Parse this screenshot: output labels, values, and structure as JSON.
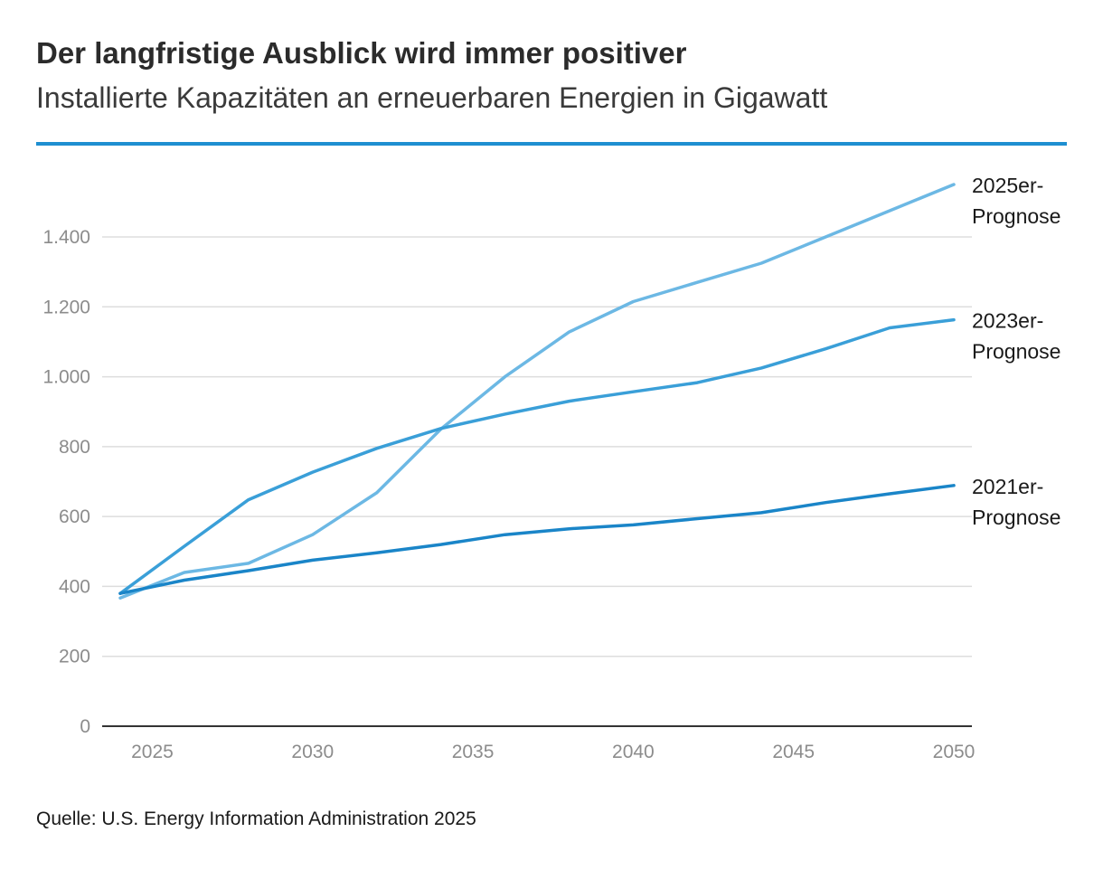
{
  "header": {
    "title": "Der langfristige Ausblick wird immer positiver",
    "subtitle": "Installierte Kapazitäten an erneuerbaren Energien in Gigawatt"
  },
  "footer": {
    "source": "Quelle: U.S. Energy Information Administration 2025"
  },
  "colors": {
    "accent_rule": "#1e8fd1",
    "grid": "#dddddd",
    "axis": "#333333"
  },
  "chart_data": {
    "type": "line",
    "title": "Der langfristige Ausblick wird immer positiver",
    "subtitle": "Installierte Kapazitäten an erneuerbaren Energien in Gigawatt",
    "xlabel": "",
    "ylabel": "",
    "xlim": [
      2024,
      2050
    ],
    "ylim": [
      0,
      1600
    ],
    "grid": true,
    "x_ticks": [
      2025,
      2030,
      2035,
      2040,
      2045,
      2050
    ],
    "x_tick_labels": [
      "2025",
      "2030",
      "2035",
      "2040",
      "2045",
      "2050"
    ],
    "y_ticks": [
      0,
      200,
      400,
      600,
      800,
      1000,
      1200,
      1400
    ],
    "y_tick_labels": [
      "0",
      "200",
      "400",
      "600",
      "800",
      "1.000",
      "1.200",
      "1.400"
    ],
    "series": [
      {
        "name": "2025er-Prognose",
        "label_lines": [
          "2025er-",
          "Prognose"
        ],
        "color": "#6cb8e4",
        "x": [
          2024,
          2026,
          2028,
          2030,
          2032,
          2034,
          2036,
          2038,
          2040,
          2042,
          2044,
          2046,
          2048,
          2050
        ],
        "values": [
          367,
          440,
          466,
          548,
          668,
          850,
          1000,
          1128,
          1215,
          1270,
          1325,
          1400,
          1475,
          1550
        ]
      },
      {
        "name": "2023er-Prognose",
        "label_lines": [
          "2023er-",
          "Prognose"
        ],
        "color": "#3a9fd8",
        "x": [
          2024,
          2026,
          2028,
          2030,
          2032,
          2034,
          2036,
          2038,
          2040,
          2042,
          2044,
          2046,
          2048,
          2050
        ],
        "values": [
          380,
          515,
          648,
          727,
          795,
          852,
          893,
          930,
          957,
          983,
          1025,
          1080,
          1140,
          1163
        ]
      },
      {
        "name": "2021er-Prognose",
        "label_lines": [
          "2021er-",
          "Prognose"
        ],
        "color": "#1a85c8",
        "x": [
          2024,
          2026,
          2028,
          2030,
          2032,
          2034,
          2036,
          2038,
          2040,
          2042,
          2044,
          2046,
          2048,
          2050
        ],
        "values": [
          380,
          418,
          445,
          475,
          496,
          520,
          548,
          565,
          576,
          594,
          611,
          640,
          665,
          689
        ]
      }
    ]
  }
}
